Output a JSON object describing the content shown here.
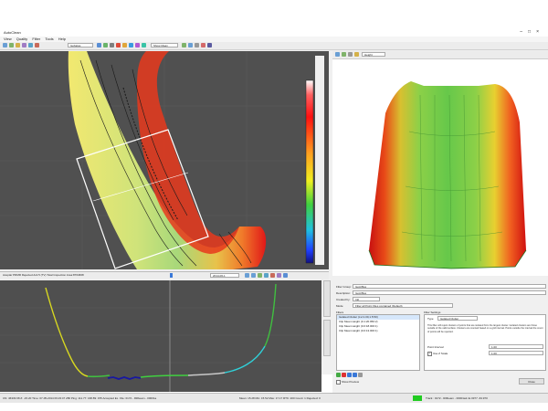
{
  "window": {
    "title": "AutoClean",
    "menu": [
      "View",
      "Quality",
      "Filter",
      "Tools",
      "Help"
    ]
  },
  "toolbar": {
    "layer_combo": "Isobatas",
    "mode_combo": "Show Mean",
    "pane3d_combo": "Height"
  },
  "map": {
    "status_text": "Aceptar PRMR Rejected Ack 5 (TV) Total Inspection Area:8764668",
    "scale_text": "2014-06-1"
  },
  "filter_panel": {
    "filter_group_label": "Filter Group:",
    "filter_group_value": "IsoArBes",
    "description_label": "Description:",
    "description_value": "IsoArBes",
    "created_by_label": "Created by:",
    "created_by_value": "Intl",
    "mode_label": "Mode",
    "mode_value": "Filter all Point Files contained (Default)",
    "filters_label": "Filters",
    "filters": [
      "Isolated Clutter (Lvl:1.00,1.5:50)",
      "Clip Mean Height (0.1:20.950:2)",
      "Clip Mean Height (0.0:18.000:1)",
      "Clip Mean Height (0.0:13.000:1)"
    ],
    "settings_label": "Filter Settings",
    "type_label": "Type",
    "type_value": "Isolated Clutter",
    "settings_description": "This filter will reject clusters of points that are isolated from the largest cluster. Isolated clusters are those outside of the valid surface. Clusters are counted based on a grid interval. Points outside the interval the count of points will be rejected.",
    "point_interval_label": "Point Interval",
    "point_interval_value": "1.00",
    "use_z_scale_label": "Use Z Scale",
    "use_z_scale_value": "1.00",
    "show_preview_label": "Show Preview",
    "close_button": "Close"
  },
  "statusbar": {
    "left_text": "CN: 46333.68 Z: -15.20 Time: 07-05-2014 09:23:47 286 Ping: 111.77: 168.89: 155 Accepted Ex. File: 0172 - Rillbeam - 00001a",
    "mid_text": "Mean: 15.28  Min: 15.52  Max: 17.17  RTK: 200  Count: 1  Rejected: 0",
    "right_text": "Track : 0172 - Rillbeam - 00001a2.4s 0377 -63.970",
    "indicator_color": "#22cc22"
  },
  "colors": {
    "surface_low": "#3a3aff",
    "surface_mid": "#33cc33",
    "surface_high": "#ff2020",
    "accent": "#22cc22"
  }
}
